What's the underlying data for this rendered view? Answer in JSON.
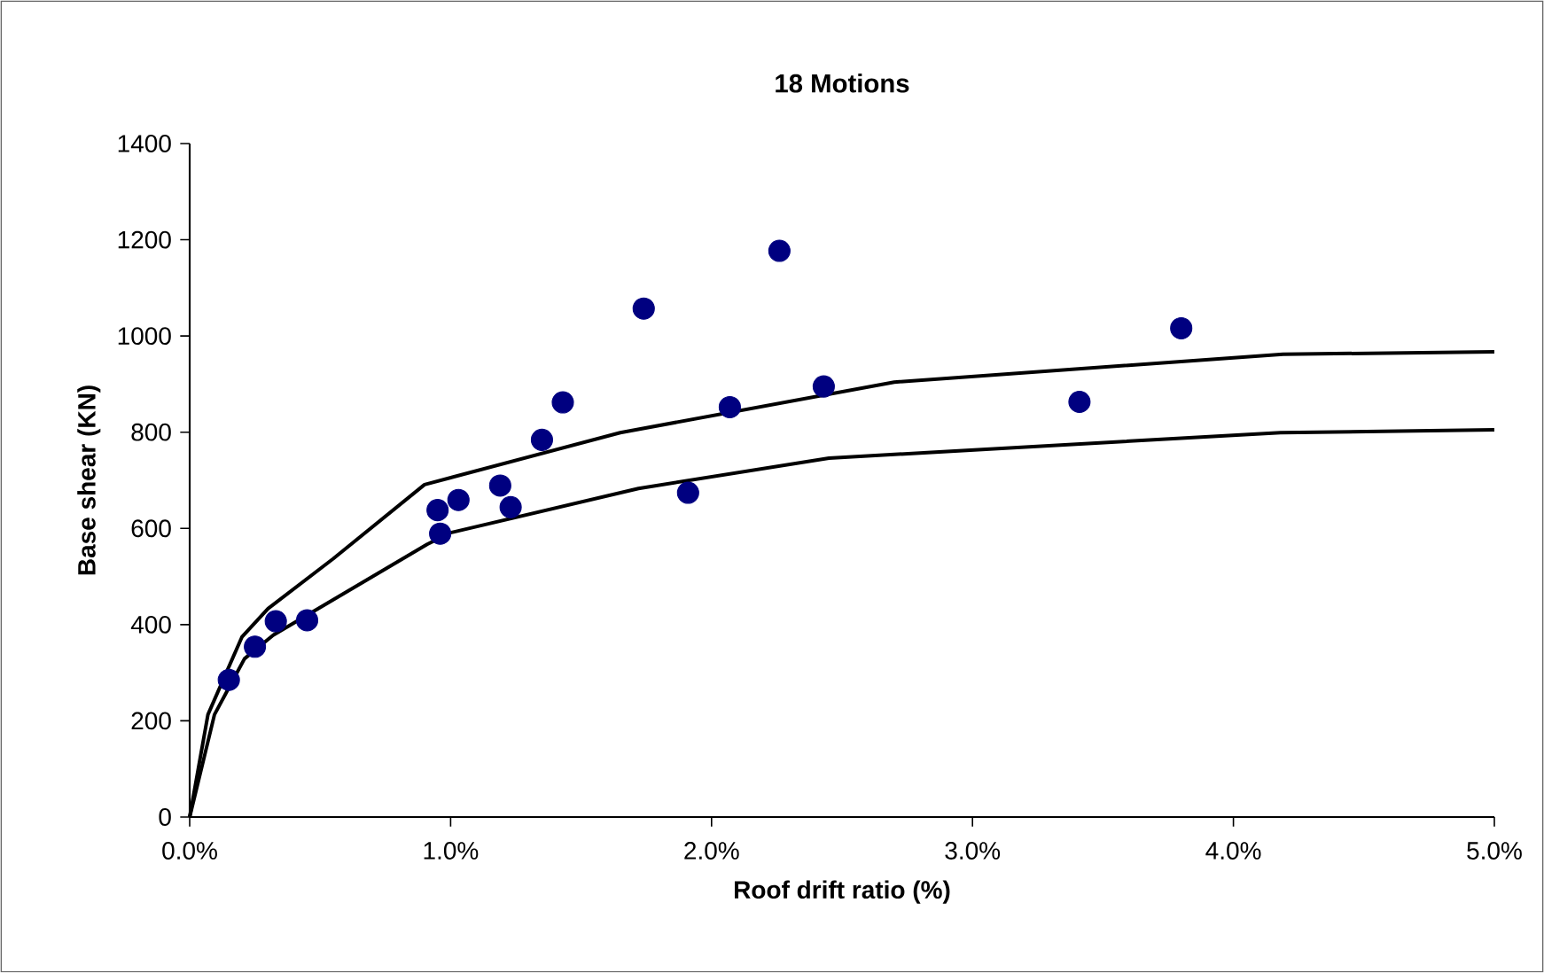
{
  "chart_data": {
    "type": "scatter",
    "title": "18 Motions",
    "xlabel": "Roof drift ratio (%)",
    "ylabel": "Base shear (KN)",
    "xlim": [
      0,
      5
    ],
    "ylim": [
      0,
      1400
    ],
    "xticks": [
      {
        "value": 0,
        "label": "0.0%"
      },
      {
        "value": 1,
        "label": "1.0%"
      },
      {
        "value": 2,
        "label": "2.0%"
      },
      {
        "value": 3,
        "label": "3.0%"
      },
      {
        "value": 4,
        "label": "4.0%"
      },
      {
        "value": 5,
        "label": "5.0%"
      }
    ],
    "yticks": [
      0,
      200,
      400,
      600,
      800,
      1000,
      1200,
      1400
    ],
    "series": [
      {
        "marker": "circle",
        "color": "#000080",
        "x": [
          0.15,
          0.25,
          0.33,
          0.45,
          0.95,
          0.96,
          1.03,
          1.19,
          1.23,
          1.35,
          1.43,
          1.74,
          1.91,
          2.07,
          2.26,
          2.43,
          3.41,
          3.8
        ],
        "values": [
          285,
          354,
          407,
          409,
          638,
          589,
          659,
          689,
          644,
          784,
          862,
          1057,
          674,
          852,
          1177,
          895,
          863,
          1016
        ]
      },
      {
        "type": "line",
        "marker": "none",
        "line_style": "solid",
        "color": "#000000",
        "x": [
          0,
          0.07,
          0.2,
          0.3,
          0.55,
          0.9,
          1.65,
          2.7,
          4.19,
          5.0
        ],
        "values": [
          0,
          213,
          374,
          433,
          537,
          691,
          799,
          904,
          962,
          967
        ]
      },
      {
        "type": "line",
        "marker": "none",
        "line_style": "solid",
        "color": "#000000",
        "x": [
          0,
          0.095,
          0.21,
          0.32,
          0.91,
          1.0,
          1.72,
          2.45,
          4.18,
          5.0
        ],
        "values": [
          0,
          213,
          329,
          378,
          567,
          591,
          683,
          746,
          799,
          805
        ]
      }
    ]
  }
}
